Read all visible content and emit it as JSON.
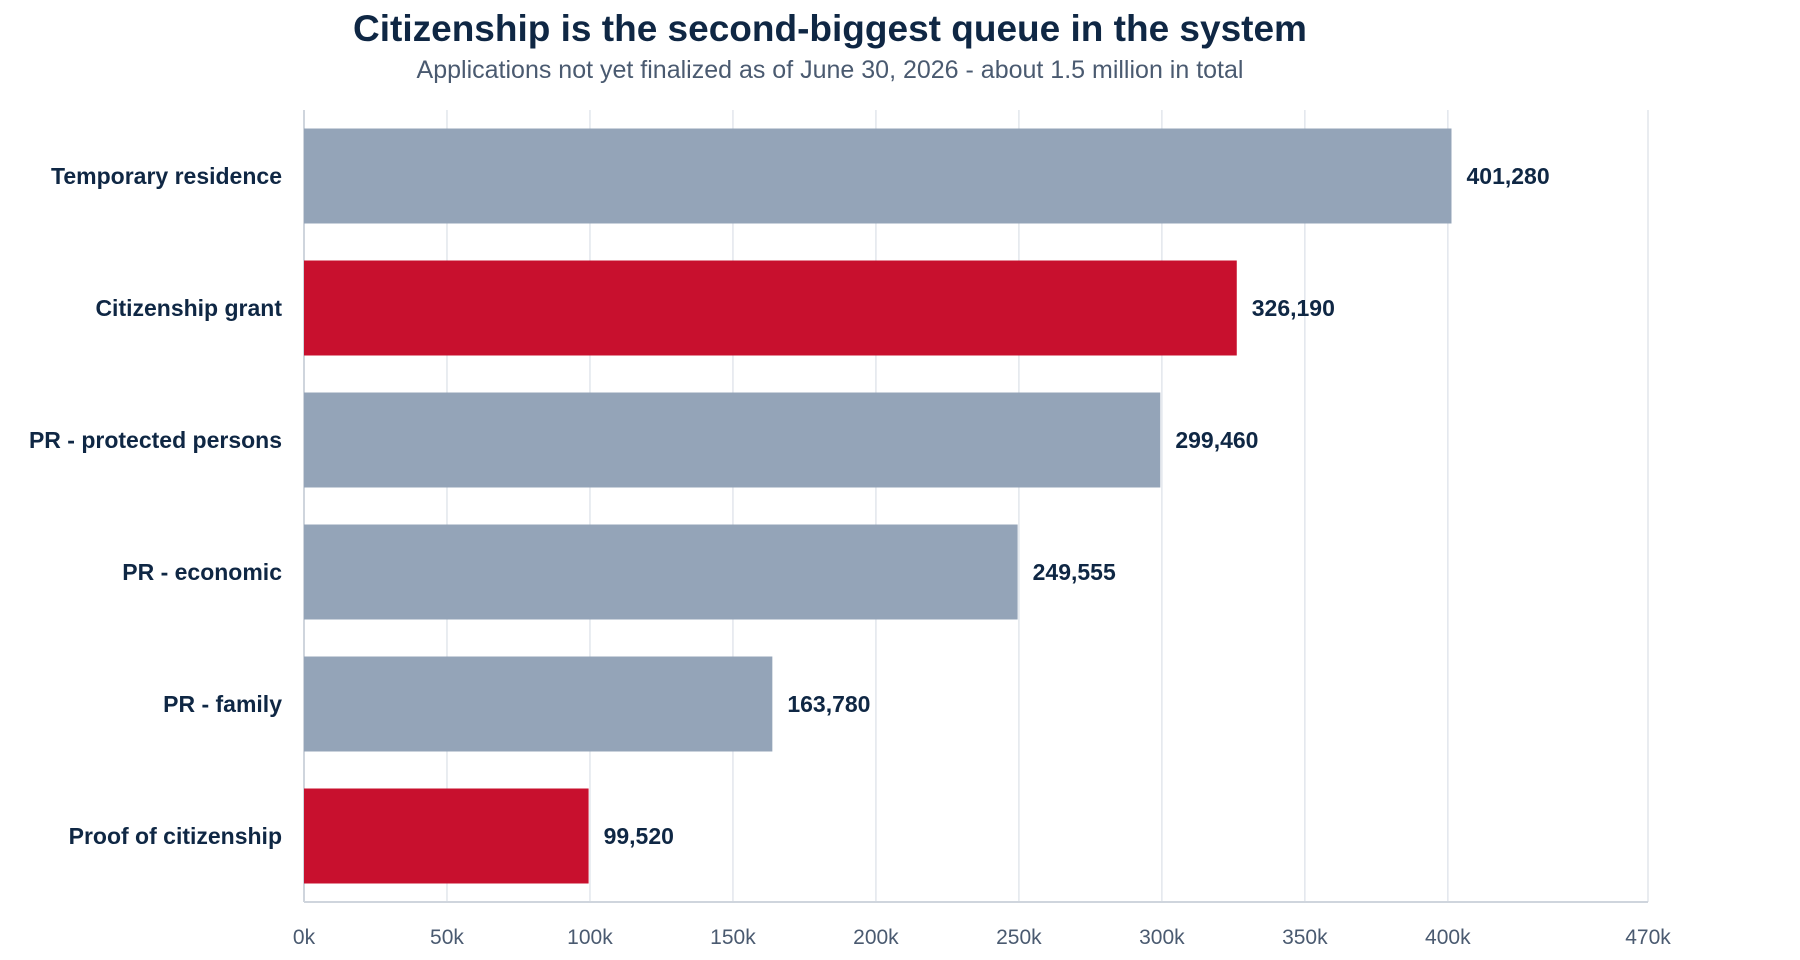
{
  "chart_data": {
    "type": "bar",
    "orientation": "horizontal",
    "title": "Citizenship is the second-biggest queue in the system",
    "subtitle": "Applications not yet finalized as of June 30, 2026 - about 1.5 million in total",
    "xlabel": "",
    "ylabel": "",
    "categories": [
      "Temporary residence",
      "Citizenship grant",
      "PR - protected persons",
      "PR - economic",
      "PR - family",
      "Proof of citizenship"
    ],
    "values": [
      401280,
      326190,
      299460,
      249555,
      163780,
      99520
    ],
    "value_labels": [
      "401,280",
      "326,190",
      "299,460",
      "249,555",
      "163,780",
      "99,520"
    ],
    "highlighted": [
      false,
      true,
      false,
      false,
      false,
      true
    ],
    "xlim": [
      0,
      470000
    ],
    "ticks": [
      0,
      50000,
      100000,
      150000,
      200000,
      250000,
      300000,
      350000,
      400000,
      470000
    ],
    "tick_labels": [
      "0k",
      "50k",
      "100k",
      "150k",
      "200k",
      "250k",
      "300k",
      "350k",
      "400k",
      "470k"
    ],
    "grid": true,
    "legend": "none",
    "colors": {
      "default_bar": "#94a4b8",
      "highlight_bar": "#c8102e",
      "grid": "#e2e6ec",
      "axis": "#cfd5dd",
      "text": "#0f2744",
      "muted_text": "#4a5a70"
    }
  }
}
